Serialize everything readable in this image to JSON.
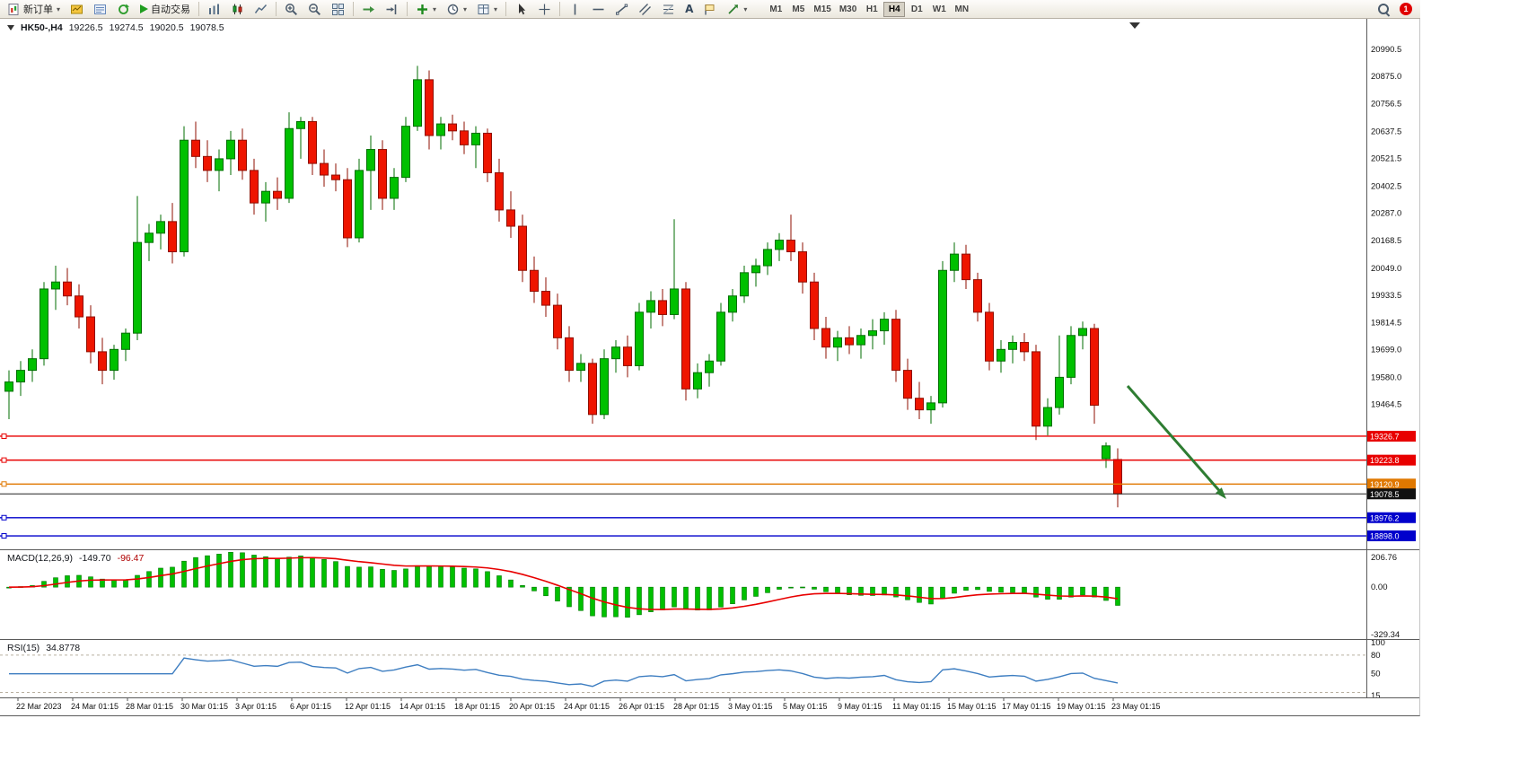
{
  "glyphs": {
    "caret": "▾",
    "text_tool": "A"
  },
  "toolbar": {
    "new_order": "新订单",
    "auto_trading": "自动交易",
    "timeframes": [
      "M1",
      "M5",
      "M15",
      "M30",
      "H1",
      "H4",
      "D1",
      "W1",
      "MN"
    ],
    "active_timeframe": "H4",
    "notification_count": "1"
  },
  "header": {
    "symbol": "HK50-,H4",
    "open": "19226.5",
    "high": "19274.5",
    "low": "19020.5",
    "close": "19078.5"
  },
  "chart_data": {
    "type": "candlestick",
    "symbol": "HK50-",
    "timeframe": "H4",
    "last_ohlc": {
      "open": 19226.5,
      "high": 19274.5,
      "low": 19020.5,
      "close": 19078.5
    },
    "price_axis_ticks": [
      20990.5,
      20875.0,
      20756.5,
      20637.5,
      20521.5,
      20402.5,
      20287.0,
      20168.5,
      20049.0,
      19933.5,
      19814.5,
      19699.0,
      19580.0,
      19464.5
    ],
    "hlines": [
      {
        "price": 19326.7,
        "label": "19326.7",
        "color": "#e80000",
        "name": "resistance-line-1"
      },
      {
        "price": 19223.8,
        "label": "19223.8",
        "color": "#e80000",
        "name": "resistance-line-2"
      },
      {
        "price": 19120.9,
        "label": "19120.9",
        "color": "#e07800",
        "name": "support-line-orange"
      },
      {
        "price": 19078.5,
        "label": "19078.5",
        "color": "#222222",
        "name": "current-price-line",
        "is_price": true
      },
      {
        "price": 18976.2,
        "label": "18976.2",
        "color": "#0000cc",
        "name": "support-line-blue-1"
      },
      {
        "price": 18898.0,
        "label": "18898.0",
        "color": "#0000cc",
        "name": "support-line-blue-2"
      }
    ],
    "time_axis": [
      "22 Mar 2023",
      "24 Mar 01:15",
      "28 Mar 01:15",
      "30 Mar 01:15",
      "3 Apr 01:15",
      "6 Apr 01:15",
      "12 Apr 01:15",
      "14 Apr 01:15",
      "18 Apr 01:15",
      "20 Apr 01:15",
      "24 Apr 01:15",
      "26 Apr 01:15",
      "28 Apr 01:15",
      "3 May 01:15",
      "5 May 01:15",
      "9 May 01:15",
      "11 May 01:15",
      "15 May 01:15",
      "17 May 01:15",
      "19 May 01:15",
      "23 May 01:15"
    ],
    "annotation": {
      "type": "arrow",
      "color": "#2e7d32"
    },
    "indicators": {
      "macd": {
        "label": "MACD(12,26,9)",
        "value_main": "-149.70",
        "value_signal": "-96.47",
        "axis_ticks": [
          206.76,
          0.0,
          -329.34
        ],
        "histogram_color": "#00c000",
        "signal_color": "#e80000"
      },
      "rsi": {
        "label": "RSI(15)",
        "value": "34.8778",
        "axis_ticks": [
          100,
          80,
          50,
          15
        ],
        "levels": [
          80,
          20
        ],
        "line_color": "#3e7ec1"
      }
    },
    "colors": {
      "up": "#00c000",
      "up_stroke": "#006e00",
      "down": "#ee1500",
      "down_stroke": "#8f0f00"
    },
    "candles": [
      [
        19520,
        19610,
        19400,
        19560
      ],
      [
        19560,
        19650,
        19500,
        19610
      ],
      [
        19610,
        19700,
        19560,
        19660
      ],
      [
        19660,
        19990,
        19630,
        19960
      ],
      [
        19960,
        20060,
        19870,
        19990
      ],
      [
        19990,
        20050,
        19890,
        19930
      ],
      [
        19930,
        19980,
        19790,
        19840
      ],
      [
        19840,
        19890,
        19640,
        19690
      ],
      [
        19690,
        19750,
        19550,
        19610
      ],
      [
        19610,
        19720,
        19570,
        19700
      ],
      [
        19700,
        19790,
        19650,
        19770
      ],
      [
        19770,
        20360,
        19740,
        20160
      ],
      [
        20160,
        20240,
        20080,
        20200
      ],
      [
        20200,
        20280,
        20130,
        20250
      ],
      [
        20250,
        20330,
        20070,
        20120
      ],
      [
        20120,
        20660,
        20100,
        20600
      ],
      [
        20600,
        20680,
        20480,
        20530
      ],
      [
        20530,
        20600,
        20420,
        20470
      ],
      [
        20470,
        20560,
        20380,
        20520
      ],
      [
        20520,
        20640,
        20450,
        20600
      ],
      [
        20600,
        20650,
        20430,
        20470
      ],
      [
        20470,
        20520,
        20280,
        20330
      ],
      [
        20330,
        20420,
        20250,
        20380
      ],
      [
        20380,
        20440,
        20300,
        20350
      ],
      [
        20350,
        20720,
        20330,
        20650
      ],
      [
        20650,
        20700,
        20520,
        20680
      ],
      [
        20680,
        20700,
        20450,
        20500
      ],
      [
        20500,
        20560,
        20400,
        20450
      ],
      [
        20450,
        20500,
        20380,
        20430
      ],
      [
        20430,
        20480,
        20140,
        20180
      ],
      [
        20180,
        20520,
        20160,
        20470
      ],
      [
        20470,
        20620,
        20300,
        20560
      ],
      [
        20560,
        20600,
        20300,
        20350
      ],
      [
        20350,
        20480,
        20300,
        20440
      ],
      [
        20440,
        20700,
        20420,
        20660
      ],
      [
        20660,
        20920,
        20640,
        20860
      ],
      [
        20860,
        20900,
        20560,
        20620
      ],
      [
        20620,
        20700,
        20560,
        20670
      ],
      [
        20670,
        20710,
        20600,
        20640
      ],
      [
        20640,
        20680,
        20540,
        20580
      ],
      [
        20580,
        20660,
        20480,
        20630
      ],
      [
        20630,
        20650,
        20420,
        20460
      ],
      [
        20460,
        20520,
        20250,
        20300
      ],
      [
        20300,
        20380,
        20180,
        20230
      ],
      [
        20230,
        20280,
        19990,
        20040
      ],
      [
        20040,
        20100,
        19900,
        19950
      ],
      [
        19950,
        20010,
        19840,
        19890
      ],
      [
        19890,
        19940,
        19700,
        19750
      ],
      [
        19750,
        19800,
        19560,
        19610
      ],
      [
        19610,
        19680,
        19560,
        19640
      ],
      [
        19640,
        19660,
        19380,
        19420
      ],
      [
        19420,
        19700,
        19400,
        19660
      ],
      [
        19660,
        19740,
        19600,
        19710
      ],
      [
        19710,
        19760,
        19580,
        19630
      ],
      [
        19630,
        19900,
        19610,
        19860
      ],
      [
        19860,
        19950,
        19790,
        19910
      ],
      [
        19910,
        19960,
        19800,
        19850
      ],
      [
        19850,
        20260,
        19830,
        19960
      ],
      [
        19960,
        19990,
        19480,
        19530
      ],
      [
        19530,
        19640,
        19490,
        19600
      ],
      [
        19600,
        19680,
        19540,
        19650
      ],
      [
        19650,
        19900,
        19630,
        19860
      ],
      [
        19860,
        19960,
        19820,
        19930
      ],
      [
        19930,
        20060,
        19900,
        20030
      ],
      [
        20030,
        20090,
        19970,
        20060
      ],
      [
        20060,
        20160,
        20020,
        20130
      ],
      [
        20130,
        20200,
        20080,
        20170
      ],
      [
        20170,
        20280,
        20080,
        20120
      ],
      [
        20120,
        20160,
        19940,
        19990
      ],
      [
        19990,
        20030,
        19740,
        19790
      ],
      [
        19790,
        19840,
        19660,
        19710
      ],
      [
        19710,
        19780,
        19650,
        19750
      ],
      [
        19750,
        19800,
        19680,
        19720
      ],
      [
        19720,
        19790,
        19660,
        19760
      ],
      [
        19760,
        19830,
        19700,
        19780
      ],
      [
        19780,
        19860,
        19720,
        19830
      ],
      [
        19830,
        19870,
        19560,
        19610
      ],
      [
        19610,
        19660,
        19440,
        19490
      ],
      [
        19490,
        19560,
        19400,
        19440
      ],
      [
        19440,
        19500,
        19380,
        19470
      ],
      [
        19470,
        20080,
        19450,
        20040
      ],
      [
        20040,
        20160,
        19990,
        20110
      ],
      [
        20110,
        20150,
        19960,
        20000
      ],
      [
        20000,
        20030,
        19820,
        19860
      ],
      [
        19860,
        19900,
        19610,
        19650
      ],
      [
        19650,
        19740,
        19600,
        19700
      ],
      [
        19700,
        19760,
        19640,
        19730
      ],
      [
        19730,
        19770,
        19650,
        19690
      ],
      [
        19690,
        19720,
        19310,
        19370
      ],
      [
        19370,
        19490,
        19330,
        19450
      ],
      [
        19450,
        19760,
        19420,
        19580
      ],
      [
        19580,
        19800,
        19550,
        19760
      ],
      [
        19760,
        19820,
        19700,
        19790
      ],
      [
        19790,
        19810,
        19380,
        19460
      ],
      [
        19230,
        19300,
        19190,
        19285
      ],
      [
        19226.5,
        19274.5,
        19020.5,
        19078.5
      ]
    ]
  }
}
